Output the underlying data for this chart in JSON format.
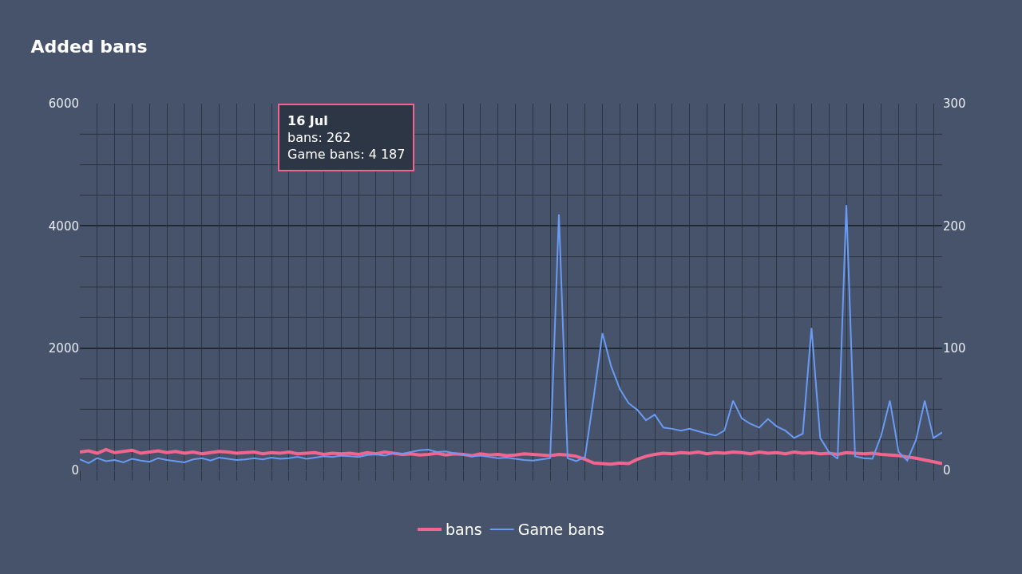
{
  "chart_data": {
    "type": "line",
    "title": "Added bans",
    "categories": [
      null,
      null,
      null,
      null,
      null,
      null,
      null,
      null,
      null,
      null,
      null,
      null,
      null,
      null,
      null,
      null,
      null,
      null,
      null,
      null,
      null,
      null,
      null,
      null,
      null,
      null,
      null,
      null,
      null,
      null,
      null,
      null,
      null,
      null,
      null,
      null,
      null,
      null,
      null,
      null,
      null,
      null,
      null,
      null,
      null,
      null,
      null,
      null,
      null,
      null,
      null,
      null,
      null,
      null,
      null,
      null,
      null,
      null,
      null,
      null,
      null,
      null,
      null,
      null,
      null,
      null,
      null,
      null,
      null,
      null,
      null,
      null,
      null,
      null,
      null,
      null,
      null,
      null,
      null,
      null,
      null,
      null,
      null,
      null,
      null,
      null,
      null,
      null,
      null,
      null,
      null,
      null,
      null,
      null,
      null,
      null,
      null,
      null,
      null,
      null
    ],
    "series": [
      {
        "name": "bans",
        "color": "#f0668f",
        "values": [
          300,
          320,
          280,
          340,
          290,
          310,
          330,
          280,
          300,
          320,
          290,
          310,
          280,
          300,
          270,
          290,
          310,
          300,
          280,
          290,
          300,
          270,
          290,
          280,
          300,
          270,
          280,
          290,
          260,
          280,
          270,
          280,
          260,
          290,
          270,
          300,
          280,
          260,
          270,
          250,
          260,
          280,
          250,
          270,
          260,
          240,
          270,
          250,
          260,
          240,
          250,
          270,
          260,
          250,
          240,
          262,
          250,
          230,
          180,
          120,
          110,
          100,
          120,
          110,
          180,
          230,
          260,
          280,
          270,
          290,
          280,
          300,
          270,
          290,
          280,
          300,
          290,
          270,
          300,
          280,
          290,
          270,
          300,
          280,
          290,
          270,
          280,
          260,
          290,
          280,
          270,
          280,
          260,
          250,
          240,
          220,
          200,
          170,
          140,
          110
        ]
      },
      {
        "name": "Game bans",
        "color": "#6a9bf4",
        "values": [
          180,
          120,
          200,
          150,
          170,
          130,
          190,
          160,
          140,
          200,
          170,
          150,
          130,
          180,
          200,
          160,
          210,
          190,
          170,
          180,
          200,
          180,
          210,
          190,
          200,
          220,
          190,
          210,
          230,
          220,
          240,
          230,
          220,
          250,
          260,
          240,
          280,
          270,
          300,
          330,
          340,
          300,
          310,
          280,
          260,
          230,
          240,
          220,
          200,
          210,
          190,
          170,
          160,
          180,
          200,
          4187,
          200,
          150,
          220,
          1200,
          2245,
          1700,
          1330,
          1100,
          990,
          820,
          910,
          700,
          680,
          650,
          680,
          640,
          600,
          570,
          650,
          1140,
          850,
          760,
          700,
          840,
          720,
          650,
          530,
          600,
          2330,
          530,
          300,
          190,
          4340,
          230,
          200,
          190,
          570,
          1140,
          300,
          160,
          500,
          1140,
          530,
          620
        ]
      }
    ],
    "ylim": [
      0,
      6000
    ],
    "yticks": [
      0,
      2000,
      4000,
      6000
    ],
    "y2lim": [
      0,
      300
    ],
    "y2ticks": [
      0,
      100,
      200,
      300
    ],
    "tick_labels": "y",
    "grid": true,
    "legend": "bottom",
    "marker": "none",
    "line_style": "solid",
    "annotations": [
      "16 Jul",
      "bans: 262",
      "Game bans: 4 187"
    ]
  }
}
